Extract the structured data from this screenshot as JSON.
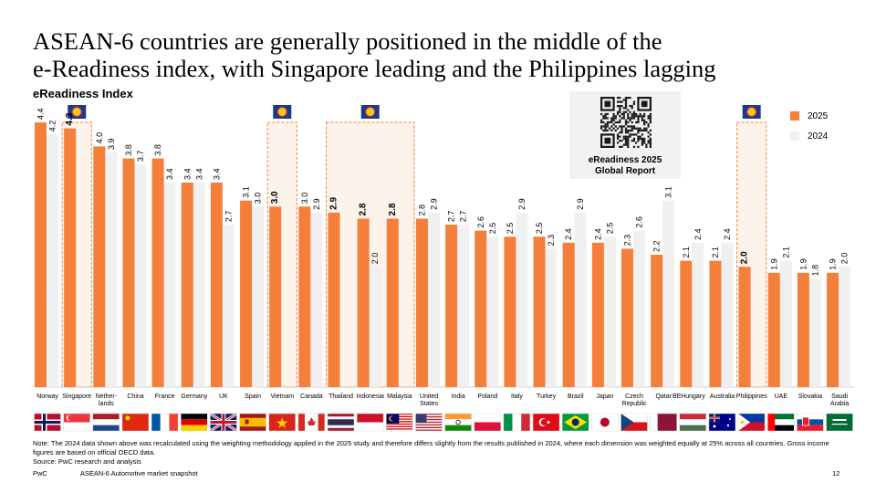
{
  "title_line1": "ASEAN-6 countries are generally positioned in the middle of the",
  "title_line2": "e-Readiness index, with Singapore leading and the Philippines lagging",
  "subtitle": "eReadiness Index",
  "report_box": {
    "line1": "eReadiness 2025",
    "line2": "Global Report"
  },
  "legend": [
    {
      "label": "2025",
      "color": "#f47f3b"
    },
    {
      "label": "2024",
      "color": "#f0f0f0"
    }
  ],
  "chart_data": {
    "type": "bar",
    "series": [
      {
        "name": "2025",
        "color": "#f47f3b"
      },
      {
        "name": "2024",
        "color": "#f0f0f0"
      }
    ],
    "categories": [
      {
        "label": [
          "Norway"
        ],
        "v2025": 4.4,
        "v2024": 4.2,
        "asean": false,
        "flag": "norway"
      },
      {
        "label": [
          "Singapore"
        ],
        "v2025": 4.3,
        "v2024": null,
        "asean": true,
        "flag": "singapore"
      },
      {
        "label": [
          "Nether-",
          "lands"
        ],
        "v2025": 4.0,
        "v2024": 3.9,
        "asean": false,
        "flag": "netherlands"
      },
      {
        "label": [
          "China"
        ],
        "v2025": 3.8,
        "v2024": 3.7,
        "asean": false,
        "flag": "china"
      },
      {
        "label": [
          "France"
        ],
        "v2025": 3.8,
        "v2024": 3.4,
        "asean": false,
        "flag": "france"
      },
      {
        "label": [
          "Germany"
        ],
        "v2025": 3.4,
        "v2024": 3.4,
        "asean": false,
        "flag": "germany"
      },
      {
        "label": [
          "UK"
        ],
        "v2025": 3.4,
        "v2024": 2.7,
        "asean": false,
        "flag": "uk"
      },
      {
        "label": [
          "Spain"
        ],
        "v2025": 3.1,
        "v2024": 3.0,
        "asean": false,
        "flag": "spain"
      },
      {
        "label": [
          "Vietnam"
        ],
        "v2025": 3.0,
        "v2024": null,
        "asean": true,
        "flag": "vietnam"
      },
      {
        "label": [
          "Canada"
        ],
        "v2025": 3.0,
        "v2024": 2.9,
        "asean": false,
        "flag": "canada"
      },
      {
        "label": [
          "Thailand"
        ],
        "v2025": 2.9,
        "v2024": null,
        "asean": true,
        "flag": "thailand"
      },
      {
        "label": [
          "Indonesia"
        ],
        "v2025": 2.8,
        "v2024": 2.0,
        "asean": true,
        "flag": "indonesia"
      },
      {
        "label": [
          "Malaysia"
        ],
        "v2025": 2.8,
        "v2024": null,
        "asean": true,
        "flag": "malaysia"
      },
      {
        "label": [
          "United",
          "States"
        ],
        "v2025": 2.8,
        "v2024": 2.9,
        "asean": false,
        "flag": "usa"
      },
      {
        "label": [
          "India"
        ],
        "v2025": 2.7,
        "v2024": 2.7,
        "asean": false,
        "flag": "india"
      },
      {
        "label": [
          "Poland"
        ],
        "v2025": 2.6,
        "v2024": 2.5,
        "asean": false,
        "flag": "poland"
      },
      {
        "label": [
          "Italy"
        ],
        "v2025": 2.5,
        "v2024": 2.9,
        "asean": false,
        "flag": "italy"
      },
      {
        "label": [
          "Turkey"
        ],
        "v2025": 2.5,
        "v2024": 2.3,
        "asean": false,
        "flag": "turkey"
      },
      {
        "label": [
          "Brazil"
        ],
        "v2025": 2.4,
        "v2024": 2.9,
        "asean": false,
        "flag": "brazil"
      },
      {
        "label": [
          "Japan"
        ],
        "v2025": 2.4,
        "v2024": 2.5,
        "asean": false,
        "flag": "japan"
      },
      {
        "label": [
          "Czech",
          "Republic"
        ],
        "v2025": 2.3,
        "v2024": 2.6,
        "asean": false,
        "flag": "czech"
      },
      {
        "label": [
          "Qatar"
        ],
        "v2025": 2.2,
        "v2024": 3.1,
        "asean": false,
        "flag": "qatar"
      },
      {
        "label": [
          "Hungary"
        ],
        "v2025": 2.1,
        "v2024": 2.4,
        "asean": false,
        "flag": "hungary"
      },
      {
        "label": [
          "Australia"
        ],
        "v2025": 2.1,
        "v2024": 2.4,
        "asean": false,
        "flag": "australia"
      },
      {
        "label": [
          "Philippines"
        ],
        "v2025": 2.0,
        "v2024": null,
        "asean": true,
        "flag": "philippines"
      },
      {
        "label": [
          "UAE"
        ],
        "v2025": 1.9,
        "v2024": 2.1,
        "asean": false,
        "flag": "uae"
      },
      {
        "label": [
          "Slovakia"
        ],
        "v2025": 1.9,
        "v2024": 1.8,
        "asean": false,
        "flag": "slovakia"
      },
      {
        "label": [
          "Saudi",
          "Arabia"
        ],
        "v2025": 1.9,
        "v2024": 2.0,
        "asean": false,
        "flag": "saudi"
      }
    ],
    "extra_labels": [
      {
        "text": "BE",
        "after": "Qatar"
      }
    ],
    "ylim": [
      0,
      4.8
    ]
  },
  "note": "Note: The 2024 data shown above was recalculated using the weighting methodology applied in the 2025 study and therefore differs slightly from the results published in 2024, where each dimension was weighted equally at 25% across all countries. Gross income figures are based on official OECD data.",
  "source": "Source: PwC research and analysis",
  "footer": {
    "brand": "PwC",
    "deck": "ASEAN-6 Automotive market snapshot",
    "page": "12"
  }
}
